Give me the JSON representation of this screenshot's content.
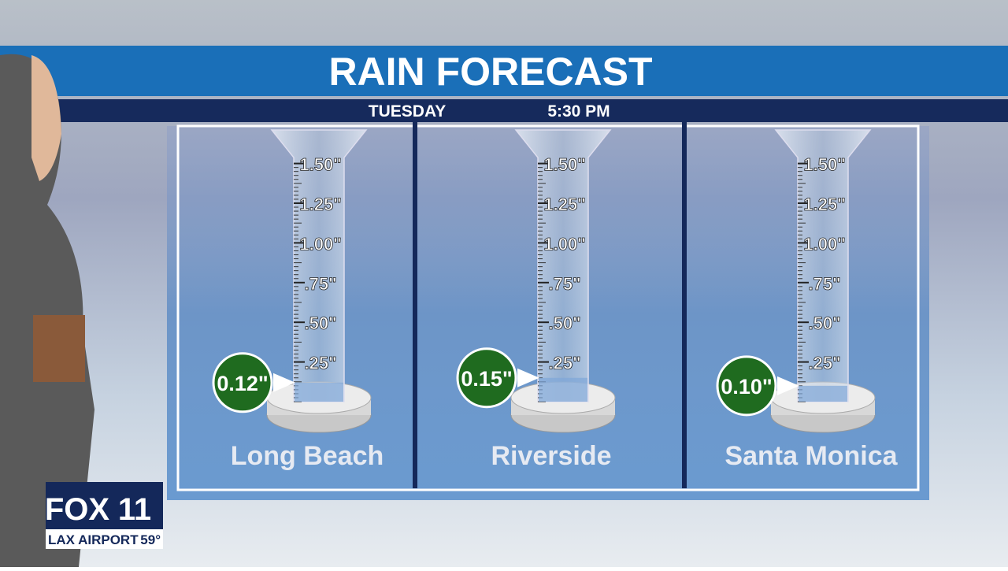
{
  "header": {
    "title": "RAIN FORECAST",
    "day": "TUESDAY",
    "time": "5:30 PM"
  },
  "scale": [
    {
      "value": 1.5,
      "label": "1.50\""
    },
    {
      "value": 1.25,
      "label": "1.25\""
    },
    {
      "value": 1.0,
      "label": "1.00\""
    },
    {
      "value": 0.75,
      "label": ".75\""
    },
    {
      "value": 0.5,
      "label": ".50\""
    },
    {
      "value": 0.25,
      "label": ".25\""
    }
  ],
  "gauges": [
    {
      "location": "Long Beach",
      "amount": {
        "value": 0.12,
        "label": "0.12\""
      }
    },
    {
      "location": "Riverside",
      "amount": {
        "value": 0.15,
        "label": "0.15\""
      }
    },
    {
      "location": "Santa Monica",
      "amount": {
        "value": 0.1,
        "label": "0.10\""
      }
    }
  ],
  "station": {
    "network": "FOX",
    "channel": "11",
    "location": "LAX AIRPORT",
    "temperature": "59°"
  }
}
